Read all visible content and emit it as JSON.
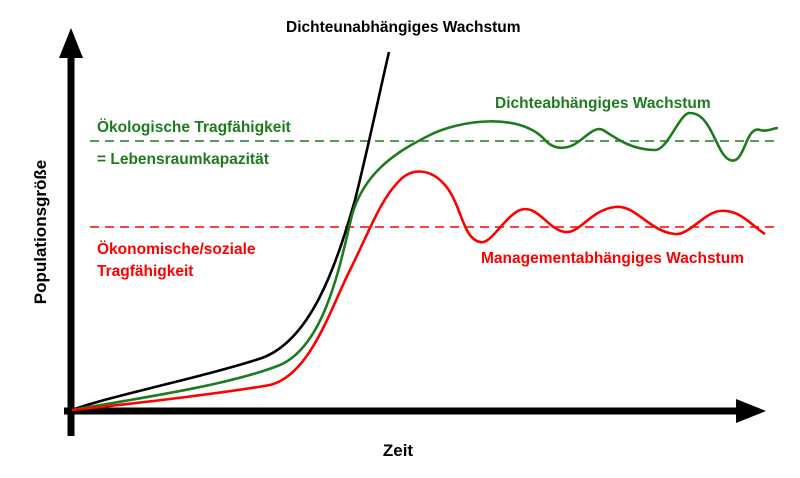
{
  "labels": {
    "density_independent": "Dichteunabhängiges Wachstum",
    "density_dependent": "Dichteabhängiges Wachstum",
    "ecological_capacity_line1": "Ökologische Tragfähigkeit",
    "ecological_capacity_line2": "= Lebensraumkapazität",
    "economic_capacity_line1": "Ökonomische/soziale",
    "economic_capacity_line2": "Tragfähigkeit",
    "management_growth": "Managementabhängiges Wachstum",
    "x_axis": "Zeit",
    "y_axis": "Populationsgröße"
  },
  "colors": {
    "axis": "#000000",
    "density_independent": "#000000",
    "ecological": "#1e7b1e",
    "economic": "#ff0000",
    "background": "#ffffff"
  }
}
